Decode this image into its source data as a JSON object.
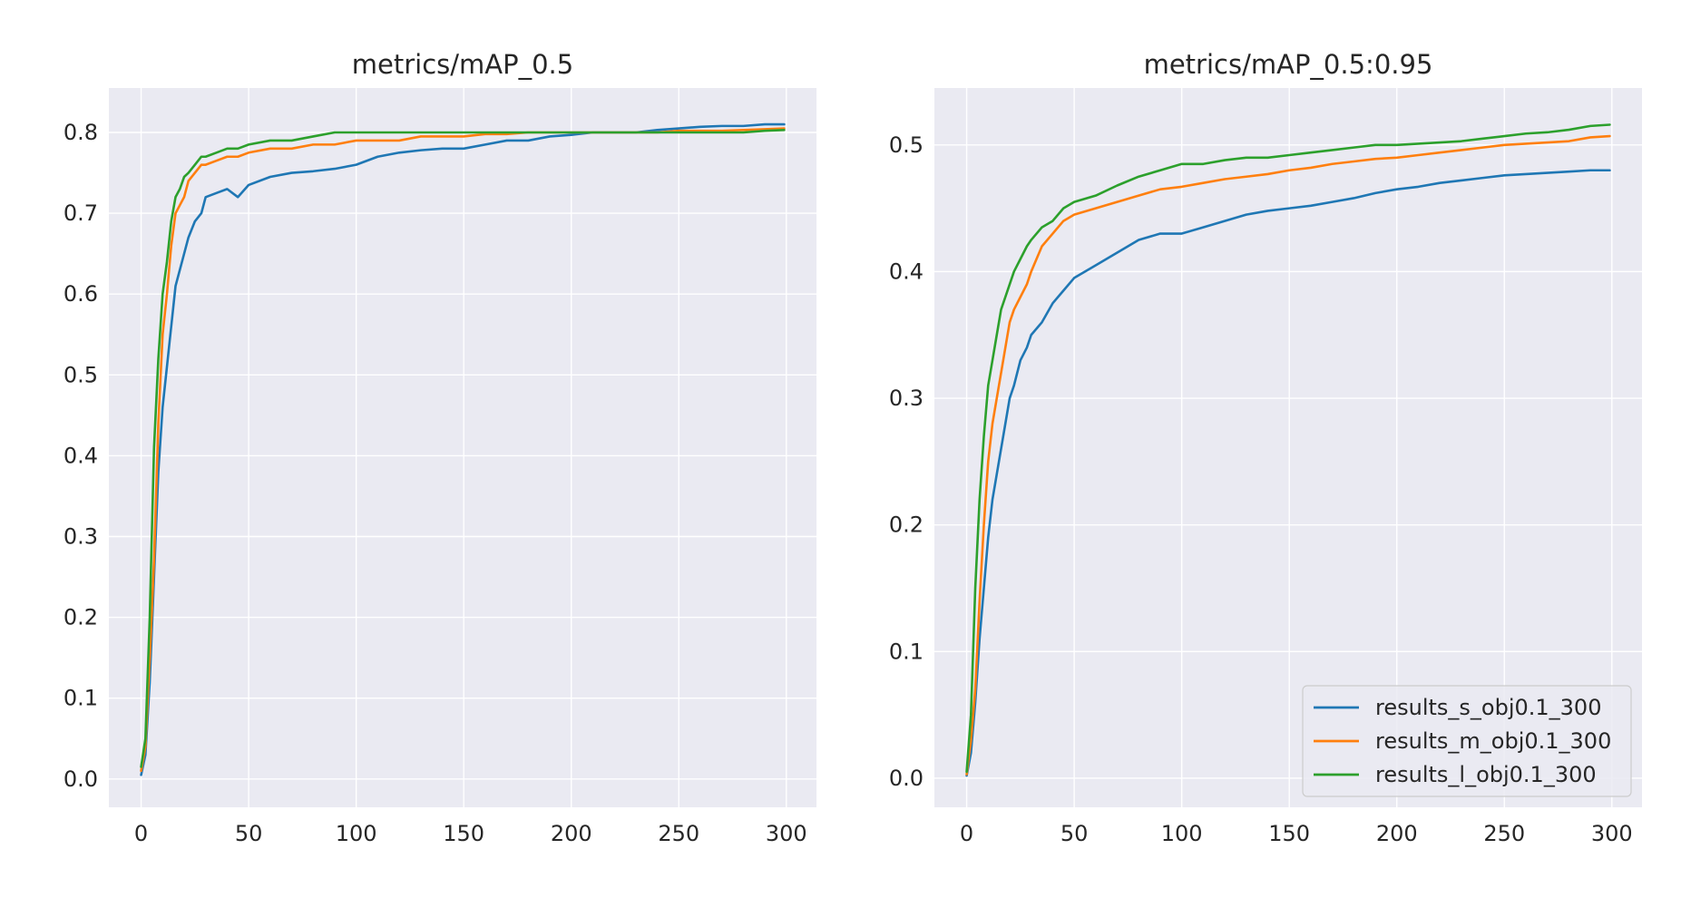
{
  "colors": {
    "plot_bg": "#eaeaf2",
    "grid": "#ffffff",
    "text": "#262626",
    "legend_bg": "#eaeaf2",
    "legend_border": "#cccccc"
  },
  "chart_data": [
    {
      "type": "line",
      "title": "metrics/mAP_0.5",
      "xlabel": "",
      "ylabel": "",
      "xlim": [
        -15,
        314
      ],
      "ylim": [
        -0.035,
        0.855
      ],
      "xticks": [
        0,
        50,
        100,
        150,
        200,
        250,
        300
      ],
      "yticks": [
        0.0,
        0.1,
        0.2,
        0.3,
        0.4,
        0.5,
        0.6,
        0.7,
        0.8
      ],
      "ytick_labels": [
        "0.0",
        "0.1",
        "0.2",
        "0.3",
        "0.4",
        "0.5",
        "0.6",
        "0.7",
        "0.8"
      ],
      "grid": true,
      "legend": false,
      "series": [
        {
          "name": "results_s_obj0.1_300",
          "color": "#1f77b4",
          "x": [
            0,
            2,
            4,
            6,
            8,
            10,
            12,
            14,
            16,
            18,
            20,
            22,
            25,
            28,
            30,
            35,
            40,
            45,
            50,
            60,
            70,
            80,
            90,
            100,
            110,
            120,
            130,
            140,
            150,
            160,
            170,
            180,
            190,
            200,
            210,
            220,
            230,
            240,
            250,
            260,
            270,
            280,
            290,
            299
          ],
          "y": [
            0.005,
            0.03,
            0.12,
            0.25,
            0.38,
            0.46,
            0.51,
            0.56,
            0.61,
            0.63,
            0.65,
            0.67,
            0.69,
            0.7,
            0.72,
            0.725,
            0.73,
            0.72,
            0.735,
            0.745,
            0.75,
            0.752,
            0.755,
            0.76,
            0.77,
            0.775,
            0.778,
            0.78,
            0.78,
            0.785,
            0.79,
            0.79,
            0.795,
            0.797,
            0.8,
            0.8,
            0.8,
            0.803,
            0.805,
            0.807,
            0.808,
            0.808,
            0.81,
            0.81
          ]
        },
        {
          "name": "results_m_obj0.1_300",
          "color": "#ff7f0e",
          "x": [
            0,
            2,
            4,
            6,
            8,
            10,
            12,
            14,
            16,
            18,
            20,
            22,
            25,
            28,
            30,
            35,
            40,
            45,
            50,
            60,
            70,
            80,
            90,
            100,
            110,
            120,
            130,
            140,
            150,
            160,
            170,
            180,
            190,
            200,
            210,
            220,
            230,
            240,
            250,
            260,
            270,
            280,
            290,
            299
          ],
          "y": [
            0.01,
            0.04,
            0.15,
            0.27,
            0.44,
            0.55,
            0.6,
            0.66,
            0.7,
            0.71,
            0.72,
            0.74,
            0.75,
            0.76,
            0.76,
            0.765,
            0.77,
            0.77,
            0.775,
            0.78,
            0.78,
            0.785,
            0.785,
            0.79,
            0.79,
            0.79,
            0.795,
            0.795,
            0.795,
            0.798,
            0.798,
            0.8,
            0.8,
            0.8,
            0.8,
            0.8,
            0.8,
            0.8,
            0.802,
            0.802,
            0.802,
            0.803,
            0.804,
            0.805
          ]
        },
        {
          "name": "results_l_obj0.1_300",
          "color": "#2ca02c",
          "x": [
            0,
            2,
            4,
            6,
            8,
            10,
            12,
            14,
            16,
            18,
            20,
            22,
            25,
            28,
            30,
            35,
            40,
            45,
            50,
            60,
            70,
            80,
            90,
            100,
            110,
            120,
            130,
            140,
            150,
            160,
            170,
            180,
            190,
            200,
            210,
            220,
            230,
            240,
            250,
            260,
            270,
            280,
            290,
            299
          ],
          "y": [
            0.015,
            0.05,
            0.2,
            0.41,
            0.52,
            0.6,
            0.64,
            0.69,
            0.72,
            0.73,
            0.745,
            0.75,
            0.76,
            0.77,
            0.77,
            0.775,
            0.78,
            0.78,
            0.785,
            0.79,
            0.79,
            0.795,
            0.8,
            0.8,
            0.8,
            0.8,
            0.8,
            0.8,
            0.8,
            0.8,
            0.8,
            0.8,
            0.8,
            0.8,
            0.8,
            0.8,
            0.8,
            0.8,
            0.8,
            0.8,
            0.8,
            0.8,
            0.802,
            0.803
          ]
        }
      ]
    },
    {
      "type": "line",
      "title": "metrics/mAP_0.5:0.95",
      "xlabel": "",
      "ylabel": "",
      "xlim": [
        -15,
        314
      ],
      "ylim": [
        -0.023,
        0.545
      ],
      "xticks": [
        0,
        50,
        100,
        150,
        200,
        250,
        300
      ],
      "yticks": [
        0.0,
        0.1,
        0.2,
        0.3,
        0.4,
        0.5
      ],
      "ytick_labels": [
        "0.0",
        "0.1",
        "0.2",
        "0.3",
        "0.4",
        "0.5"
      ],
      "grid": true,
      "legend": true,
      "legend_loc": "lower-right",
      "series": [
        {
          "name": "results_s_obj0.1_300",
          "color": "#1f77b4",
          "x": [
            0,
            2,
            4,
            6,
            8,
            10,
            12,
            14,
            16,
            18,
            20,
            22,
            25,
            28,
            30,
            35,
            40,
            45,
            50,
            60,
            70,
            80,
            90,
            100,
            110,
            120,
            130,
            140,
            150,
            160,
            170,
            180,
            190,
            200,
            210,
            220,
            230,
            240,
            250,
            260,
            270,
            280,
            290,
            299
          ],
          "y": [
            0.002,
            0.02,
            0.06,
            0.11,
            0.15,
            0.19,
            0.22,
            0.24,
            0.26,
            0.28,
            0.3,
            0.31,
            0.33,
            0.34,
            0.35,
            0.36,
            0.375,
            0.385,
            0.395,
            0.405,
            0.415,
            0.425,
            0.43,
            0.43,
            0.435,
            0.44,
            0.445,
            0.448,
            0.45,
            0.452,
            0.455,
            0.458,
            0.462,
            0.465,
            0.467,
            0.47,
            0.472,
            0.474,
            0.476,
            0.477,
            0.478,
            0.479,
            0.48,
            0.48
          ]
        },
        {
          "name": "results_m_obj0.1_300",
          "color": "#ff7f0e",
          "x": [
            0,
            2,
            4,
            6,
            8,
            10,
            12,
            14,
            16,
            18,
            20,
            22,
            25,
            28,
            30,
            35,
            40,
            45,
            50,
            60,
            70,
            80,
            90,
            100,
            110,
            120,
            130,
            140,
            150,
            160,
            170,
            180,
            190,
            200,
            210,
            220,
            230,
            240,
            250,
            260,
            270,
            280,
            290,
            299
          ],
          "y": [
            0.003,
            0.03,
            0.07,
            0.14,
            0.2,
            0.25,
            0.28,
            0.3,
            0.32,
            0.34,
            0.36,
            0.37,
            0.38,
            0.39,
            0.4,
            0.42,
            0.43,
            0.44,
            0.445,
            0.45,
            0.455,
            0.46,
            0.465,
            0.467,
            0.47,
            0.473,
            0.475,
            0.477,
            0.48,
            0.482,
            0.485,
            0.487,
            0.489,
            0.49,
            0.492,
            0.494,
            0.496,
            0.498,
            0.5,
            0.501,
            0.502,
            0.503,
            0.506,
            0.507
          ]
        },
        {
          "name": "results_l_obj0.1_300",
          "color": "#2ca02c",
          "x": [
            0,
            2,
            4,
            6,
            8,
            10,
            12,
            14,
            16,
            18,
            20,
            22,
            25,
            28,
            30,
            35,
            40,
            45,
            50,
            60,
            70,
            80,
            90,
            100,
            110,
            120,
            130,
            140,
            150,
            160,
            170,
            180,
            190,
            200,
            210,
            220,
            230,
            240,
            250,
            260,
            270,
            280,
            290,
            299
          ],
          "y": [
            0.005,
            0.05,
            0.15,
            0.22,
            0.27,
            0.31,
            0.33,
            0.35,
            0.37,
            0.38,
            0.39,
            0.4,
            0.41,
            0.42,
            0.425,
            0.435,
            0.44,
            0.45,
            0.455,
            0.46,
            0.468,
            0.475,
            0.48,
            0.485,
            0.485,
            0.488,
            0.49,
            0.49,
            0.492,
            0.494,
            0.496,
            0.498,
            0.5,
            0.5,
            0.501,
            0.502,
            0.503,
            0.505,
            0.507,
            0.509,
            0.51,
            0.512,
            0.515,
            0.516
          ]
        }
      ]
    }
  ]
}
